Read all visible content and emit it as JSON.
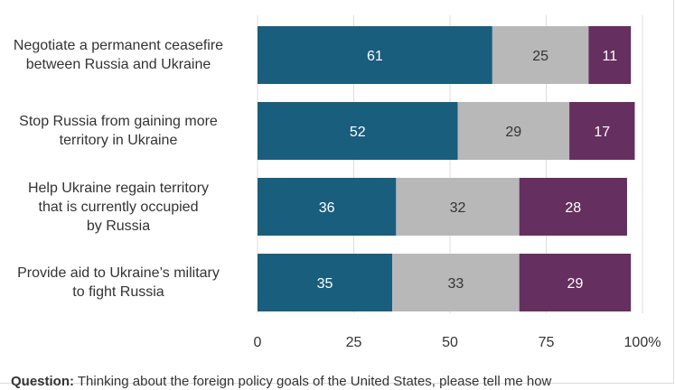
{
  "chart_data": {
    "type": "bar",
    "orientation": "horizontal",
    "stacked": true,
    "categories": [
      "Negotiate a permanent ceasefire between Russia and Ukraine",
      "Stop Russia from gaining more territory in Ukraine",
      "Help Ukraine regain territory that is currently occupied by Russia",
      "Provide aid to Ukraine’s military to fight Russia"
    ],
    "category_lines": [
      [
        "Negotiate a permanent ceasefire",
        "between Russia and Ukraine"
      ],
      [
        "Stop Russia from gaining more",
        "territory in Ukraine"
      ],
      [
        "Help Ukraine regain territory",
        "that is currently occupied",
        "by Russia"
      ],
      [
        "Provide aid to Ukraine’s military",
        "to fight Russia"
      ]
    ],
    "series": [
      {
        "values": [
          61,
          52,
          36,
          35
        ],
        "color": "#1a5e7e"
      },
      {
        "values": [
          25,
          29,
          32,
          33
        ],
        "color": "#b8b8b8"
      },
      {
        "values": [
          11,
          17,
          28,
          29
        ],
        "color": "#652f5f"
      }
    ],
    "xlim": [
      0,
      100
    ],
    "xticks": [
      0,
      25,
      50,
      75,
      100
    ],
    "xtick_labels": [
      "0",
      "25",
      "50",
      "75",
      "100%"
    ],
    "grid": true,
    "legend": "none",
    "data_labels": true
  },
  "note": {
    "prefix": "Question:",
    "text": " Thinking about the foreign policy goals of the United States, please tell me how"
  }
}
